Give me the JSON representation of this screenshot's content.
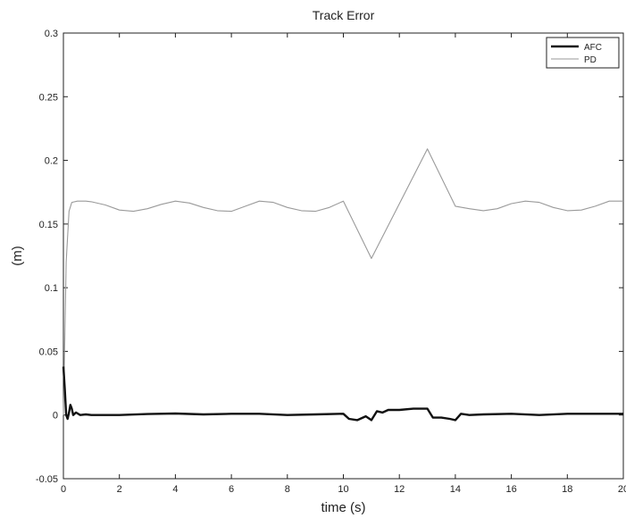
{
  "chart_data": {
    "type": "line",
    "title": "Track Error",
    "xlabel": "time (s)",
    "ylabel": "(m)",
    "xlim": [
      0,
      20
    ],
    "ylim": [
      -0.05,
      0.3
    ],
    "xticks": [
      "0",
      "2",
      "4",
      "6",
      "8",
      "10",
      "12",
      "14",
      "16",
      "18",
      "20"
    ],
    "yticks": [
      "-0.05",
      "0",
      "0.05",
      "0.1",
      "0.15",
      "0.2",
      "0.25",
      "0.3"
    ],
    "grid": false,
    "legend_position": "top-right",
    "series": [
      {
        "name": "AFC",
        "color": "#111111",
        "x": [
          0,
          0.05,
          0.1,
          0.15,
          0.2,
          0.25,
          0.3,
          0.35,
          0.45,
          0.6,
          0.8,
          1.0,
          2,
          3,
          4,
          5,
          6,
          7,
          8,
          9,
          10.0,
          10.2,
          10.5,
          10.8,
          11.0,
          11.2,
          11.4,
          11.6,
          12.0,
          12.5,
          13.0,
          13.2,
          13.5,
          13.8,
          14.0,
          14.2,
          14.5,
          15,
          16,
          17,
          18,
          19,
          20
        ],
        "y": [
          0.038,
          0.02,
          0.0,
          -0.003,
          0.002,
          0.008,
          0.005,
          0.0,
          0.002,
          0.0,
          0.0005,
          0.0,
          0.0,
          0.0008,
          0.0012,
          0.0005,
          0.001,
          0.001,
          0.0,
          0.0005,
          0.001,
          -0.003,
          -0.004,
          -0.001,
          -0.004,
          0.003,
          0.002,
          0.004,
          0.004,
          0.005,
          0.005,
          -0.002,
          -0.002,
          -0.003,
          -0.004,
          0.001,
          0.0,
          0.0005,
          0.001,
          0.0,
          0.001,
          0.001,
          0.001
        ]
      },
      {
        "name": "PD",
        "color": "#9a9a9a",
        "x": [
          0,
          0.1,
          0.2,
          0.3,
          0.5,
          0.8,
          1.0,
          1.5,
          2.0,
          2.5,
          3.0,
          3.5,
          4.0,
          4.5,
          5.0,
          5.5,
          6.0,
          6.5,
          7.0,
          7.5,
          8.0,
          8.5,
          9.0,
          9.5,
          10.0,
          11.0,
          13.0,
          14.0,
          14.5,
          15.0,
          15.5,
          16.0,
          16.5,
          17.0,
          17.5,
          18.0,
          18.5,
          19.0,
          19.5,
          20.0
        ],
        "y": [
          0.0,
          0.12,
          0.16,
          0.167,
          0.168,
          0.168,
          0.1675,
          0.165,
          0.161,
          0.16,
          0.162,
          0.1655,
          0.168,
          0.1665,
          0.163,
          0.1605,
          0.16,
          0.164,
          0.168,
          0.167,
          0.163,
          0.1605,
          0.16,
          0.163,
          0.168,
          0.123,
          0.209,
          0.164,
          0.162,
          0.1605,
          0.162,
          0.166,
          0.168,
          0.167,
          0.163,
          0.1605,
          0.161,
          0.164,
          0.168,
          0.168
        ]
      }
    ]
  }
}
